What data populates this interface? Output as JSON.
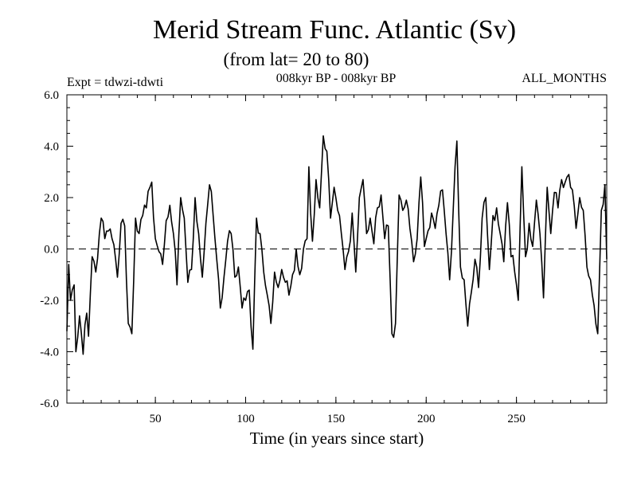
{
  "chart_data": {
    "type": "line",
    "title": "Merid Stream Func. Atlantic (Sv)",
    "subtitle": "(from lat= 20 to 80)",
    "experiment_label": "Expt = tdwzi-tdwti",
    "period_label": "008kyr BP - 008kyr BP",
    "months_label": "ALL_MONTHS",
    "xlabel": "Time (in years since start)",
    "ylabel": "",
    "xlim": [
      1,
      300
    ],
    "ylim": [
      -6,
      6
    ],
    "x_ticks": [
      50,
      100,
      150,
      200,
      250
    ],
    "x_tick_labels": [
      "50",
      "100",
      "150",
      "200",
      "250"
    ],
    "y_ticks": [
      -6,
      -4,
      -2,
      0,
      2,
      4,
      6
    ],
    "y_tick_labels": [
      "-6.0",
      "-4.0",
      "-2.0",
      "0.0",
      "2.0",
      "4.0",
      "6.0"
    ],
    "zero_line": "dashed",
    "grid": false,
    "series": [
      {
        "keypoints": [
          [
            1,
            -3.2
          ],
          [
            2,
            -0.6
          ],
          [
            3,
            -2.0
          ],
          [
            5,
            -1.4
          ],
          [
            6,
            -4.0
          ],
          [
            8,
            -2.6
          ],
          [
            10,
            -4.1
          ],
          [
            12,
            -2.5
          ],
          [
            13,
            -3.4
          ],
          [
            15,
            -0.3
          ],
          [
            17,
            -0.9
          ],
          [
            19,
            0.6
          ],
          [
            20,
            1.2
          ],
          [
            22,
            0.4
          ],
          [
            24,
            0.7
          ],
          [
            26,
            0.4
          ],
          [
            28,
            -0.4
          ],
          [
            29,
            -1.1
          ],
          [
            31,
            1.0
          ],
          [
            33,
            0.9
          ],
          [
            35,
            -2.9
          ],
          [
            37,
            -3.3
          ],
          [
            39,
            1.2
          ],
          [
            41,
            0.6
          ],
          [
            43,
            1.3
          ],
          [
            45,
            1.6
          ],
          [
            47,
            2.4
          ],
          [
            48,
            2.6
          ],
          [
            50,
            0.4
          ],
          [
            52,
            -0.1
          ],
          [
            54,
            -0.6
          ],
          [
            56,
            1.1
          ],
          [
            58,
            1.7
          ],
          [
            60,
            0.6
          ],
          [
            62,
            -1.4
          ],
          [
            64,
            2.0
          ],
          [
            66,
            1.2
          ],
          [
            68,
            -1.3
          ],
          [
            70,
            -0.8
          ],
          [
            72,
            2.0
          ],
          [
            74,
            0.6
          ],
          [
            76,
            -1.1
          ],
          [
            78,
            1.0
          ],
          [
            80,
            2.5
          ],
          [
            82,
            1.3
          ],
          [
            84,
            -0.4
          ],
          [
            86,
            -2.3
          ],
          [
            88,
            -1.1
          ],
          [
            90,
            0.3
          ],
          [
            92,
            0.6
          ],
          [
            94,
            -1.1
          ],
          [
            96,
            -0.7
          ],
          [
            98,
            -2.3
          ],
          [
            100,
            -2.0
          ],
          [
            102,
            -1.6
          ],
          [
            104,
            -3.9
          ],
          [
            106,
            1.2
          ],
          [
            108,
            0.6
          ],
          [
            110,
            -0.9
          ],
          [
            112,
            -1.8
          ],
          [
            114,
            -2.9
          ],
          [
            116,
            -0.9
          ],
          [
            118,
            -1.5
          ],
          [
            120,
            -0.8
          ],
          [
            122,
            -1.3
          ],
          [
            124,
            -1.8
          ],
          [
            126,
            -1.0
          ],
          [
            128,
            0.0
          ],
          [
            130,
            -1.0
          ],
          [
            132,
            0.0
          ],
          [
            134,
            0.4
          ],
          [
            135,
            3.2
          ],
          [
            137,
            0.3
          ],
          [
            139,
            2.7
          ],
          [
            141,
            1.6
          ],
          [
            143,
            4.4
          ],
          [
            145,
            3.8
          ],
          [
            147,
            1.2
          ],
          [
            149,
            2.4
          ],
          [
            151,
            1.5
          ],
          [
            153,
            0.6
          ],
          [
            155,
            -0.8
          ],
          [
            157,
            -0.1
          ],
          [
            159,
            1.4
          ],
          [
            161,
            -0.9
          ],
          [
            163,
            2.0
          ],
          [
            165,
            2.7
          ],
          [
            167,
            0.6
          ],
          [
            169,
            1.2
          ],
          [
            171,
            0.2
          ],
          [
            173,
            1.6
          ],
          [
            175,
            2.1
          ],
          [
            177,
            0.4
          ],
          [
            179,
            0.9
          ],
          [
            181,
            -3.3
          ],
          [
            183,
            -2.9
          ],
          [
            185,
            2.1
          ],
          [
            187,
            1.5
          ],
          [
            189,
            1.9
          ],
          [
            191,
            0.8
          ],
          [
            193,
            -0.5
          ],
          [
            195,
            0.4
          ],
          [
            197,
            2.8
          ],
          [
            199,
            0.1
          ],
          [
            201,
            0.7
          ],
          [
            203,
            1.4
          ],
          [
            205,
            0.8
          ],
          [
            207,
            1.7
          ],
          [
            209,
            2.3
          ],
          [
            211,
            0.6
          ],
          [
            213,
            -1.2
          ],
          [
            215,
            1.6
          ],
          [
            217,
            4.2
          ],
          [
            219,
            -0.7
          ],
          [
            221,
            -1.2
          ],
          [
            223,
            -3.0
          ],
          [
            225,
            -1.7
          ],
          [
            227,
            -0.4
          ],
          [
            229,
            -1.5
          ],
          [
            231,
            1.2
          ],
          [
            233,
            2.0
          ],
          [
            235,
            -0.8
          ],
          [
            237,
            1.3
          ],
          [
            239,
            1.6
          ],
          [
            241,
            0.6
          ],
          [
            243,
            -0.5
          ],
          [
            245,
            1.8
          ],
          [
            247,
            -0.3
          ],
          [
            249,
            -0.9
          ],
          [
            251,
            -2.0
          ],
          [
            253,
            3.2
          ],
          [
            255,
            -0.3
          ],
          [
            257,
            1.0
          ],
          [
            259,
            0.1
          ],
          [
            261,
            1.9
          ],
          [
            263,
            0.6
          ],
          [
            265,
            -1.9
          ],
          [
            267,
            2.4
          ],
          [
            269,
            0.6
          ],
          [
            271,
            2.2
          ],
          [
            273,
            1.6
          ],
          [
            275,
            2.7
          ],
          [
            277,
            2.6
          ],
          [
            279,
            2.9
          ],
          [
            281,
            2.3
          ],
          [
            283,
            0.8
          ],
          [
            285,
            2.0
          ],
          [
            287,
            1.5
          ],
          [
            289,
            -0.7
          ],
          [
            291,
            -1.2
          ],
          [
            293,
            -2.2
          ],
          [
            295,
            -3.3
          ],
          [
            297,
            1.5
          ],
          [
            299,
            2.5
          ],
          [
            300,
            -0.4
          ]
        ]
      }
    ]
  }
}
